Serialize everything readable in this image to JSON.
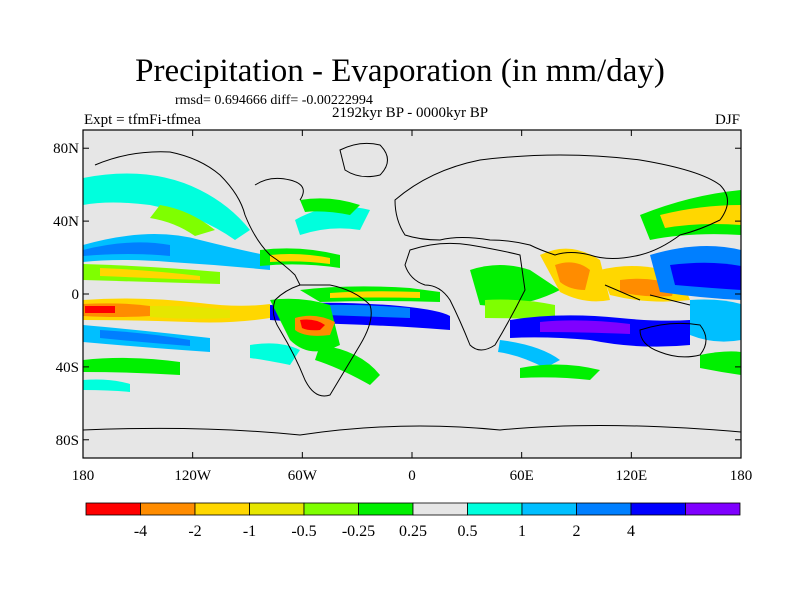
{
  "title": "Precipitation - Evaporation (in mm/day)",
  "stats": "rmsd= 0.694666 diff= -0.00222994",
  "experiment": "Expt = tfmFi-tfmea",
  "subtitle": "2192kyr BP - 0000kyr BP",
  "season": "DJF",
  "map": {
    "lon_range": [
      -180,
      180
    ],
    "lat_range": [
      -90,
      90
    ],
    "background_color": "#e6e6e6",
    "lat_ticks": [
      {
        "value": 80,
        "label": "80N"
      },
      {
        "value": 40,
        "label": "40N"
      },
      {
        "value": 0,
        "label": "0"
      },
      {
        "value": -40,
        "label": "40S"
      },
      {
        "value": -80,
        "label": "80S"
      }
    ],
    "lon_ticks": [
      {
        "value": -180,
        "label": "180"
      },
      {
        "value": -120,
        "label": "120W"
      },
      {
        "value": -60,
        "label": "60W"
      },
      {
        "value": 0,
        "label": "0"
      },
      {
        "value": 60,
        "label": "60E"
      },
      {
        "value": 120,
        "label": "120E"
      },
      {
        "value": 180,
        "label": "180"
      }
    ]
  },
  "colorbar": {
    "colors": [
      "#ff0000",
      "#ff8c00",
      "#ffd700",
      "#e6e600",
      "#7fff00",
      "#00f000",
      "#e6e6e6",
      "#00ffdd",
      "#00bfff",
      "#007fff",
      "#0000ff",
      "#7f00ff"
    ],
    "labels": [
      "-4",
      "-2",
      "-1",
      "-0.5",
      "-0.25",
      "0.25",
      "0.5",
      "1",
      "2",
      "4"
    ]
  }
}
